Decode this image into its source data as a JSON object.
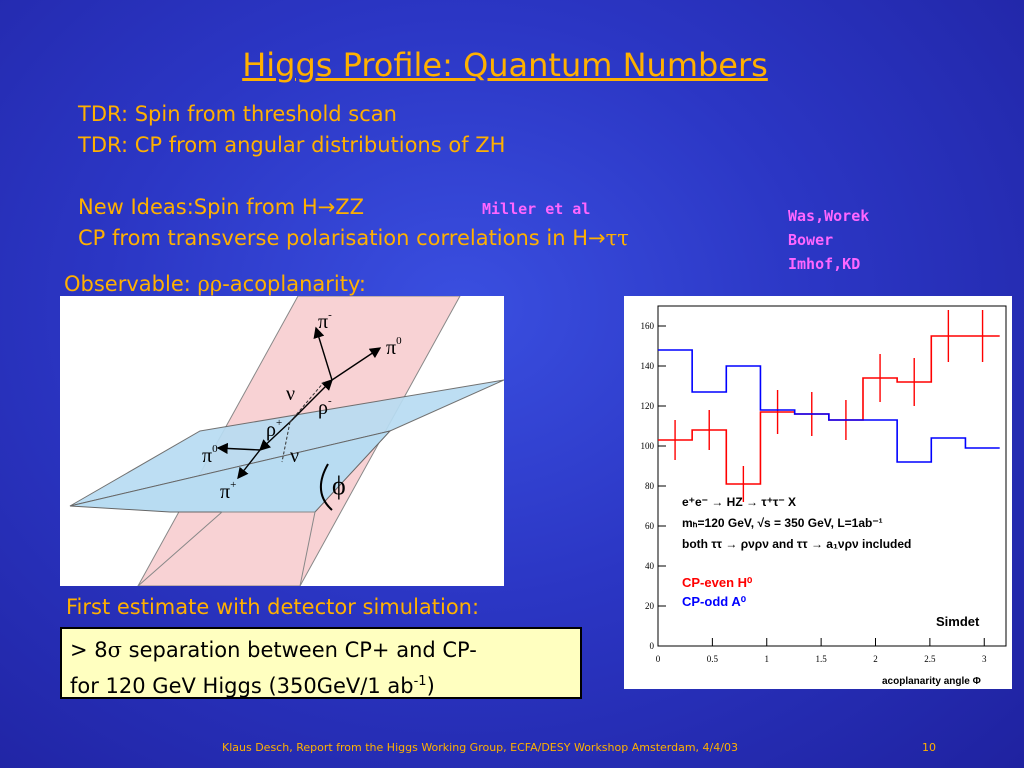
{
  "title": "Higgs Profile: Quantum Numbers",
  "tdr": {
    "line1": "TDR: Spin from threshold scan",
    "line2": "TDR: CP from angular distributions of ZH"
  },
  "new_ideas": {
    "line1_prefix": "New Ideas:Spin from H",
    "arrow": "→",
    "line1_suffix": "ZZ",
    "line2_prefix": "CP from transverse polarisation correlations in H",
    "line2_suffix": "ττ"
  },
  "refs": {
    "miller": "Miller et al",
    "was": "Was,Worek",
    "bower": "Bower",
    "imhof": "Imhof,KD"
  },
  "observable": {
    "prefix": "Observable: ",
    "rho": "ρρ",
    "suffix": "-acoplanarity:"
  },
  "diagram": {
    "pi_minus": "π",
    "pi_minus_sup": "-",
    "pi0_top": "π",
    "pi0_top_sup": "0",
    "nu_top": "ν",
    "rho_minus": "ρ",
    "rho_minus_sup": "-",
    "rho_plus": "ρ",
    "rho_plus_sup": "+",
    "pi0_left": "π",
    "pi0_left_sup": "0",
    "nu_bottom": "ν",
    "pi_plus": "π",
    "pi_plus_sup": "+",
    "phi": "ϕ"
  },
  "first_estimate": "First estimate with detector simulation:",
  "result": {
    "prefix": "> 8",
    "sigma": "σ",
    "line1_suffix": " separation between CP+ and CP-",
    "line2": "for 120 GeV Higgs (350GeV/1 ab",
    "sup": "-1",
    "close": ")"
  },
  "footer": "Klaus Desch, Report from the Higgs Working Group, ECFA/DESY Workshop Amsterdam, 4/4/03",
  "page_number": "10",
  "colors": {
    "accent": "#ffb000",
    "refs": "#ff66ff",
    "cp_even": "#ff0000",
    "cp_odd": "#0000ff"
  },
  "chart_data": {
    "type": "line",
    "xlabel": "acoplanarity angle Φ",
    "ylabel": "",
    "xlim": [
      0,
      3.2
    ],
    "ylim": [
      0,
      170
    ],
    "xticks": [
      "0",
      "0.5",
      "1",
      "1.5",
      "2",
      "2.5",
      "3"
    ],
    "yticks": [
      "0",
      "20",
      "40",
      "60",
      "80",
      "100",
      "120",
      "140",
      "160"
    ],
    "annotation_lines": [
      "e⁺e⁻ → HZ → τ⁺τ⁻ X",
      "mₕ=120 GeV, √s = 350 GeV, L=1ab⁻¹",
      "both ττ → ρνρν and ττ → a₁νρν included"
    ],
    "corner_label": "Simdet",
    "bin_edges": [
      0,
      0.314,
      0.628,
      0.942,
      1.257,
      1.571,
      1.885,
      2.199,
      2.513,
      2.827,
      3.142
    ],
    "series": [
      {
        "name": "CP-even H⁰",
        "color": "#ff0000",
        "style": "histogram-errorbars",
        "values": [
          103,
          108,
          81,
          117,
          116,
          113,
          134,
          132,
          155,
          155
        ],
        "errors": [
          10,
          10,
          9,
          11,
          11,
          10,
          12,
          12,
          13,
          13
        ]
      },
      {
        "name": "CP-odd A⁰",
        "color": "#0000ff",
        "style": "histogram",
        "values": [
          148,
          127,
          140,
          118,
          116,
          113,
          113,
          92,
          104,
          99
        ]
      }
    ]
  }
}
